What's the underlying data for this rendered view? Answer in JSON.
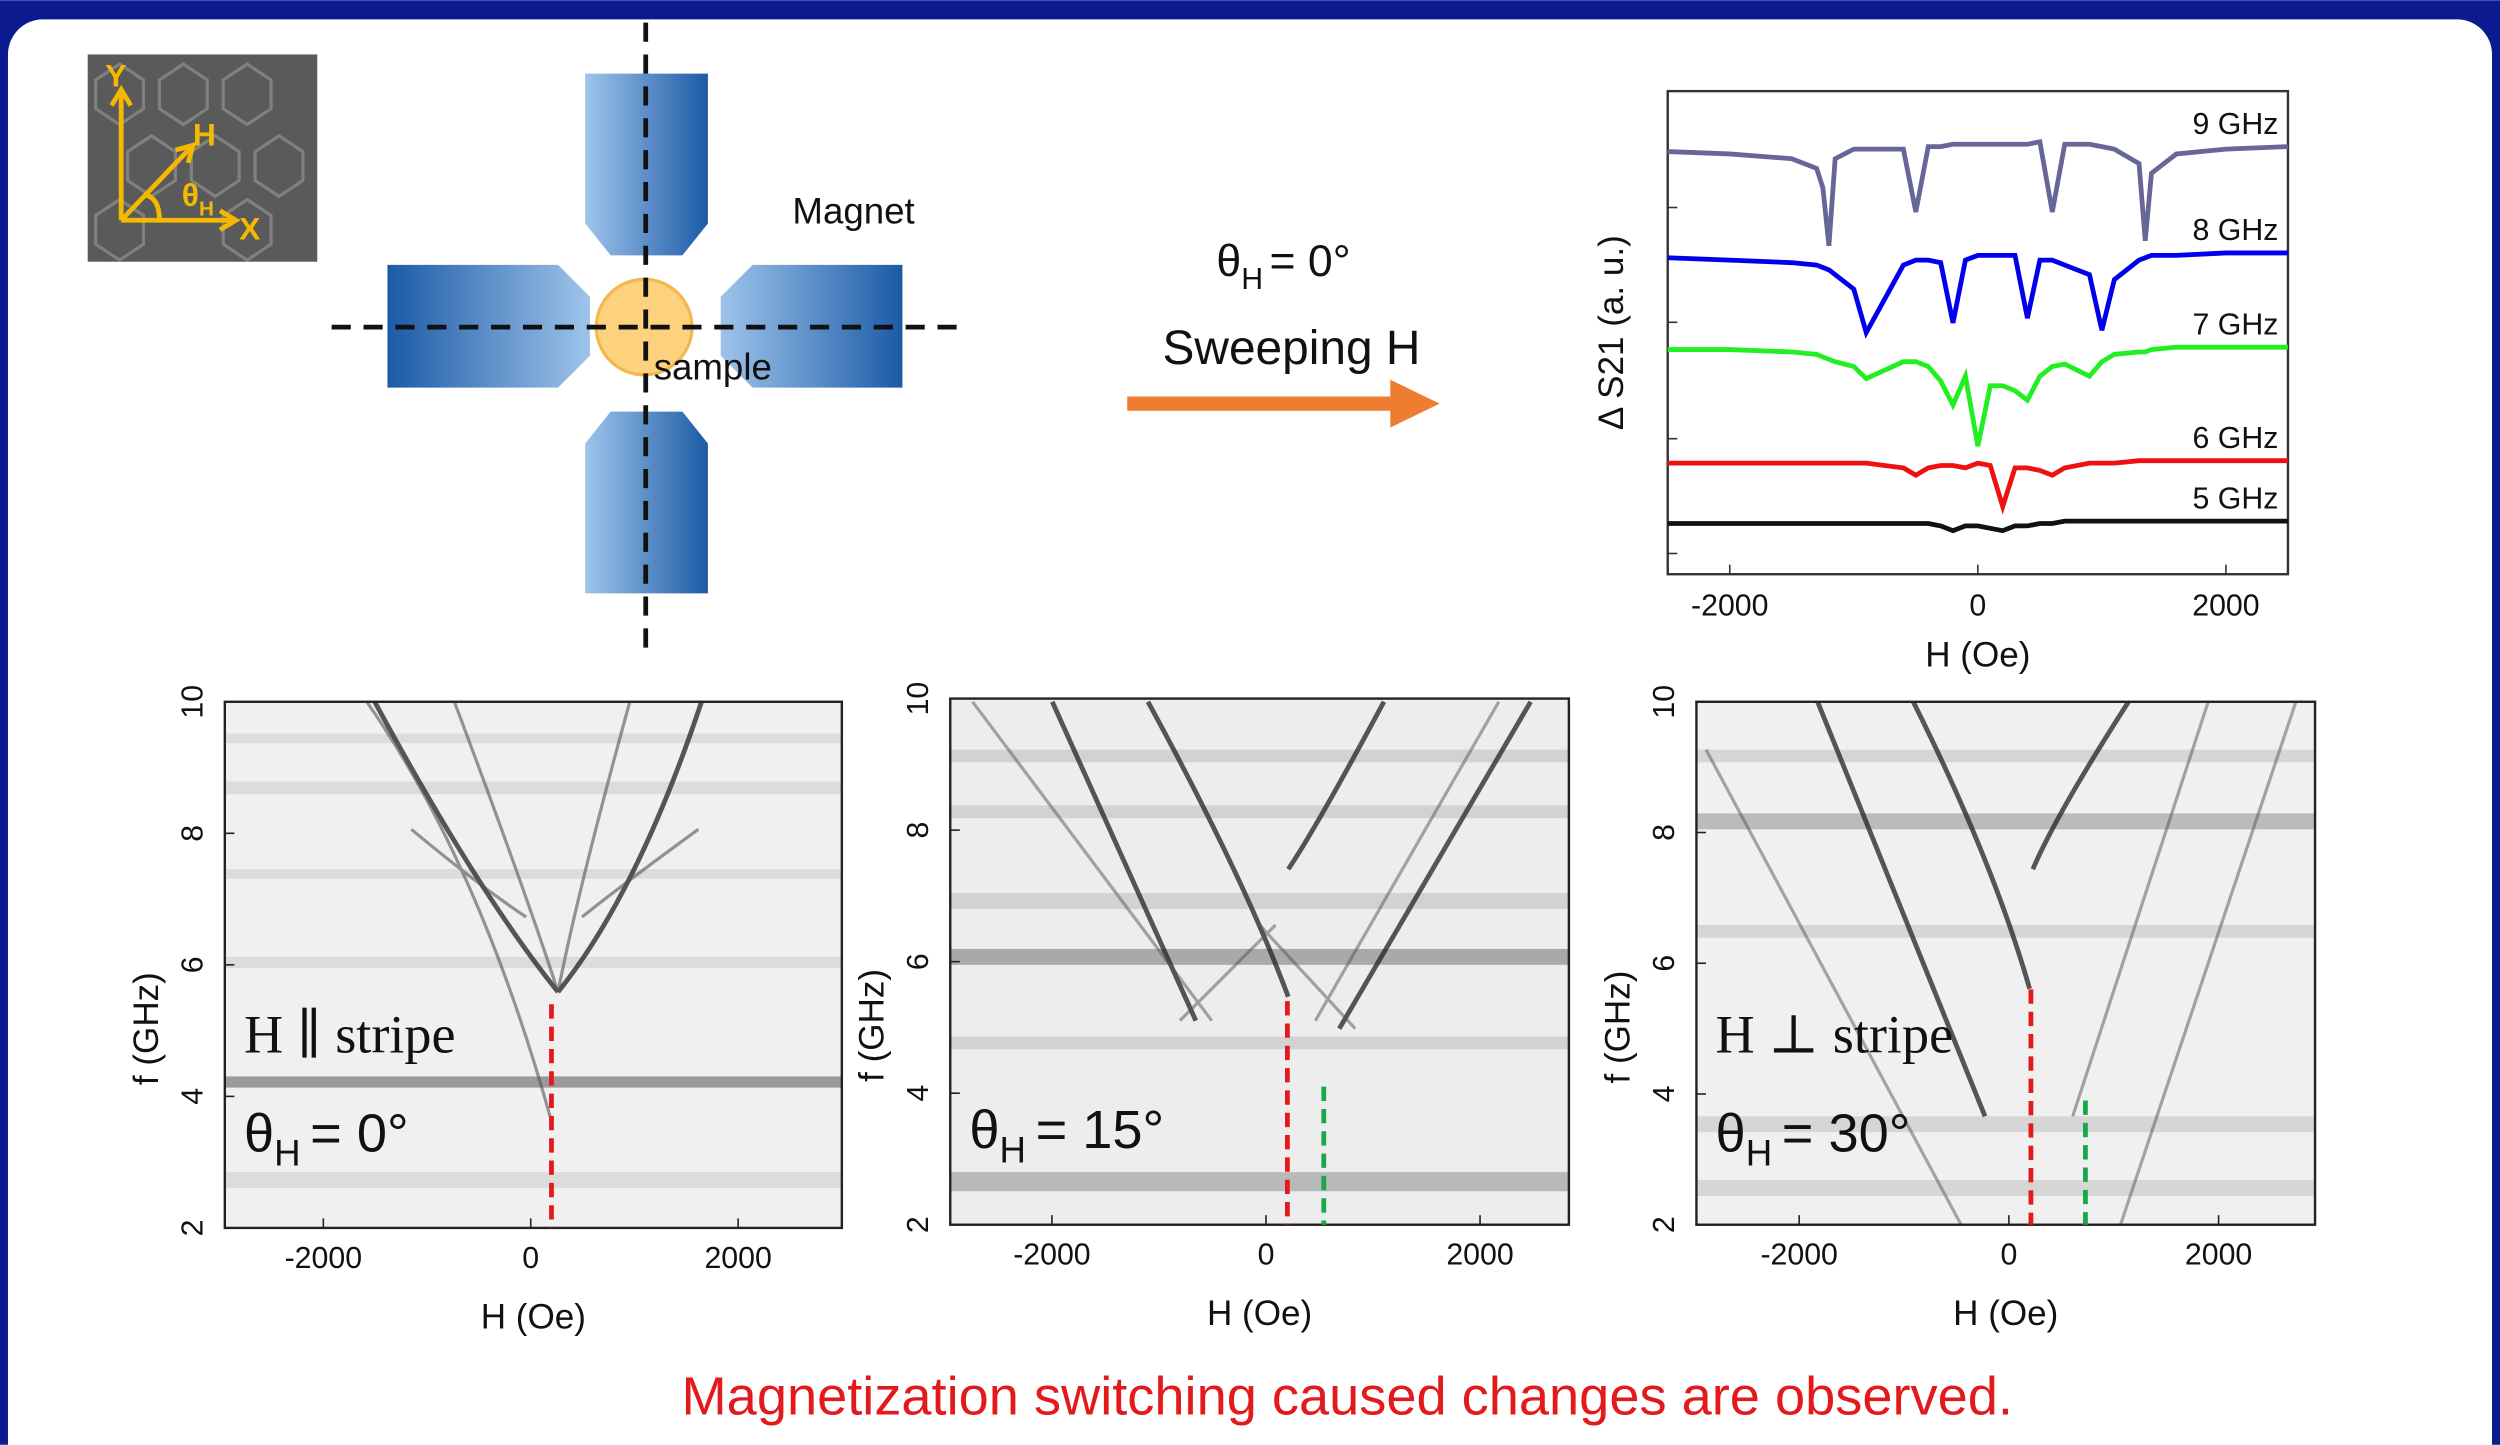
{
  "inset": {
    "y": "Y",
    "h": "H",
    "theta": "θ",
    "theta_sub": "H",
    "x": "X"
  },
  "schematic": {
    "magnet": "Magnet",
    "sample": "sample"
  },
  "sweep": {
    "theta": "θ",
    "theta_sub": "H",
    "angle": "= 0°",
    "text": "Sweeping H"
  },
  "footer": "Magnetization switching caused changes are observed.",
  "chart_data": [
    {
      "type": "line",
      "x_label": "H (Oe)",
      "y_label": "Δ S21 (a. u.)",
      "x": [
        -2500,
        -2000,
        -1500,
        -1300,
        -1250,
        -1200,
        -1150,
        -1000,
        -900,
        -600,
        -500,
        -400,
        -300,
        -200,
        -100,
        0,
        100,
        200,
        300,
        400,
        500,
        600,
        700,
        900,
        1000,
        1100,
        1300,
        1350,
        1400,
        1600,
        2000,
        2500
      ],
      "xlim": [
        -2500,
        2500
      ],
      "xticks": [
        -2000,
        0,
        2000
      ],
      "ylim": [
        0,
        10
      ],
      "series": [
        {
          "name": "9 GHz",
          "color": "#666699",
          "values": [
            8.75,
            8.7,
            8.6,
            8.4,
            8.0,
            6.8,
            8.6,
            8.8,
            8.8,
            8.8,
            7.5,
            8.85,
            8.85,
            8.9,
            8.9,
            8.9,
            8.9,
            8.9,
            8.9,
            8.9,
            8.95,
            7.5,
            8.9,
            8.9,
            8.85,
            8.8,
            8.5,
            6.9,
            8.3,
            8.7,
            8.8,
            8.85
          ]
        },
        {
          "name": "8 GHz",
          "color": "#0000ee",
          "values": [
            6.55,
            6.5,
            6.45,
            6.4,
            6.35,
            6.3,
            6.2,
            5.9,
            5.0,
            6.4,
            6.5,
            6.5,
            6.45,
            5.2,
            6.5,
            6.6,
            6.6,
            6.6,
            6.6,
            5.3,
            6.5,
            6.5,
            6.4,
            6.2,
            5.05,
            6.1,
            6.5,
            6.55,
            6.6,
            6.6,
            6.65,
            6.65
          ]
        },
        {
          "name": "7 GHz",
          "color": "#22ee22",
          "values": [
            4.65,
            4.65,
            4.6,
            4.55,
            4.5,
            4.45,
            4.4,
            4.3,
            4.05,
            4.4,
            4.4,
            4.3,
            4.0,
            3.5,
            4.1,
            2.65,
            3.9,
            3.9,
            3.8,
            3.6,
            4.1,
            4.3,
            4.35,
            4.1,
            4.4,
            4.55,
            4.6,
            4.6,
            4.65,
            4.7,
            4.7,
            4.7
          ]
        },
        {
          "name": "6 GHz",
          "color": "#ee1111",
          "values": [
            2.3,
            2.3,
            2.3,
            2.3,
            2.3,
            2.3,
            2.3,
            2.3,
            2.3,
            2.2,
            2.05,
            2.2,
            2.25,
            2.25,
            2.2,
            2.3,
            2.25,
            1.4,
            2.2,
            2.2,
            2.15,
            2.05,
            2.2,
            2.3,
            2.3,
            2.3,
            2.35,
            2.35,
            2.35,
            2.35,
            2.35,
            2.35
          ]
        },
        {
          "name": "5 GHz",
          "color": "#111111",
          "values": [
            1.05,
            1.05,
            1.05,
            1.05,
            1.05,
            1.05,
            1.05,
            1.05,
            1.05,
            1.05,
            1.05,
            1.05,
            1.0,
            0.9,
            1.0,
            1.0,
            0.95,
            0.9,
            1.0,
            1.0,
            1.05,
            1.05,
            1.1,
            1.1,
            1.1,
            1.1,
            1.1,
            1.1,
            1.1,
            1.1,
            1.1,
            1.1
          ]
        }
      ]
    },
    {
      "type": "heatmap",
      "x_label": "H (Oe)",
      "y_label": "f (GHz)",
      "xlim": [
        -2950,
        3000
      ],
      "ylim": [
        2,
        10
      ],
      "xticks": [
        -2000,
        0,
        2000
      ],
      "yticks": [
        2,
        4,
        6,
        8,
        10
      ],
      "annotation": "H ∥ stripe",
      "angle": {
        "theta": "θ",
        "sub": "H",
        "value": "= 0°"
      },
      "markers": [
        {
          "H": 200,
          "f_top": 5.4,
          "color": "#e31a1c"
        }
      ]
    },
    {
      "type": "heatmap",
      "x_label": "H (Oe)",
      "y_label": "f (GHz)",
      "xlim": [
        -2950,
        2830
      ],
      "ylim": [
        2,
        10
      ],
      "xticks": [
        -2000,
        0,
        2000
      ],
      "yticks": [
        2,
        4,
        6,
        8,
        10
      ],
      "angle": {
        "theta": "θ",
        "sub": "H",
        "value": "= 15°"
      },
      "markers": [
        {
          "H": 200,
          "f_top": 5.4,
          "color": "#e31a1c"
        },
        {
          "H": 540,
          "f_top": 4.1,
          "color": "#1aa64a"
        }
      ]
    },
    {
      "type": "heatmap",
      "x_label": "H (Oe)",
      "y_label": "f (GHz)",
      "xlim": [
        -2980,
        2920
      ],
      "ylim": [
        2,
        10
      ],
      "xticks": [
        -2000,
        0,
        2000
      ],
      "yticks": [
        2,
        4,
        6,
        8,
        10
      ],
      "annotation": "H ⊥ stripe",
      "angle": {
        "theta": "θ",
        "sub": "H",
        "value": "= 30°"
      },
      "markers": [
        {
          "H": 210,
          "f_top": 5.6,
          "color": "#e31a1c"
        },
        {
          "H": 730,
          "f_top": 3.9,
          "color": "#1aa64a"
        }
      ]
    }
  ]
}
